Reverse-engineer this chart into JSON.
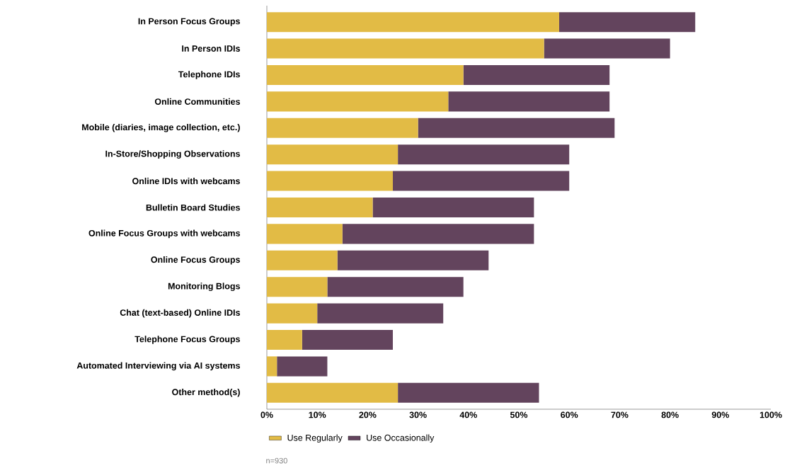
{
  "chart_data": {
    "type": "bar",
    "orientation": "horizontal",
    "stacked": true,
    "categories": [
      "In Person Focus Groups",
      "In Person IDIs",
      "Telephone IDIs",
      "Online Communities",
      "Mobile (diaries, image collection, etc.)",
      "In-Store/Shopping Observations",
      "Online IDIs with webcams",
      "Bulletin Board Studies",
      "Online Focus Groups with webcams",
      "Online Focus Groups",
      "Monitoring Blogs",
      "Chat (text-based) Online IDIs",
      "Telephone Focus Groups",
      "Automated Interviewing via AI systems",
      "Other method(s)"
    ],
    "series": [
      {
        "name": "Use Regularly",
        "color": "#e2bb45",
        "values": [
          58,
          55,
          39,
          36,
          30,
          26,
          25,
          21,
          15,
          14,
          12,
          10,
          7,
          2,
          26
        ]
      },
      {
        "name": "Use Occasionally",
        "color": "#63445d",
        "values": [
          27,
          25,
          29,
          32,
          39,
          34,
          35,
          32,
          38,
          30,
          27,
          25,
          18,
          10,
          28
        ]
      }
    ],
    "xlim": [
      0,
      100
    ],
    "xticks": [
      {
        "value": 0,
        "label": "0%"
      },
      {
        "value": 10,
        "label": "10%"
      },
      {
        "value": 20,
        "label": "20%"
      },
      {
        "value": 30,
        "label": "30%"
      },
      {
        "value": 40,
        "label": "40%"
      },
      {
        "value": 50,
        "label": "50%"
      },
      {
        "value": 60,
        "label": "60%"
      },
      {
        "value": 70,
        "label": "70%"
      },
      {
        "value": 80,
        "label": "80%"
      },
      {
        "value": 90,
        "label": "90%"
      },
      {
        "value": 100,
        "label": "100%"
      }
    ],
    "grid": false,
    "legend": "bottom left",
    "annotations": [
      "n=930"
    ]
  }
}
